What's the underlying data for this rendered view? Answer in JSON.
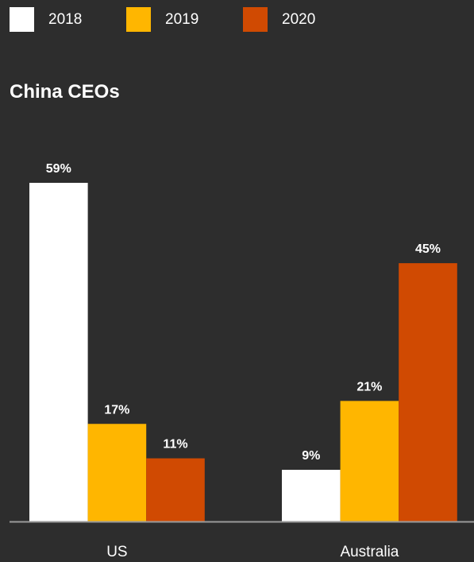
{
  "chart_data": {
    "type": "bar",
    "title": "China CEOs",
    "categories": [
      "US",
      "Australia"
    ],
    "series": [
      {
        "name": "2018",
        "color": "#ffffff",
        "values": [
          59,
          9
        ],
        "labels": [
          "59%",
          "9%"
        ]
      },
      {
        "name": "2019",
        "color": "#ffb600",
        "values": [
          17,
          21
        ],
        "labels": [
          "17%",
          "21%"
        ]
      },
      {
        "name": "2020",
        "color": "#d04a02",
        "values": [
          11,
          45
        ],
        "labels": [
          "11%",
          "45%"
        ]
      }
    ],
    "unit": "%",
    "ylim": [
      0,
      59
    ],
    "grid": false,
    "legend_position": "top-left"
  }
}
